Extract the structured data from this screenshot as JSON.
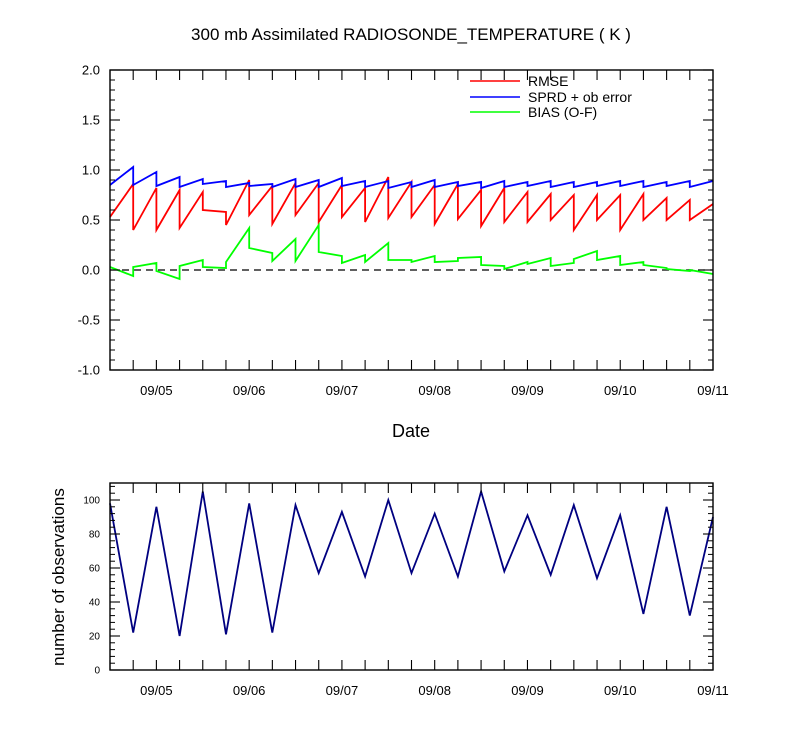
{
  "chart_data": [
    {
      "type": "line",
      "title": "300 mb Assimilated RADIOSONDE_TEMPERATURE ( K )",
      "xlabel": "Date",
      "ylabel": "",
      "ylim": [
        -1.0,
        2.0
      ],
      "xlim": [
        0,
        13
      ],
      "yticks": [
        2.0,
        1.5,
        1.0,
        0.5,
        0.0,
        -0.5,
        -1.0
      ],
      "yticklabels": [
        "2.0",
        "1.5",
        "1.0",
        "0.5",
        "0.0",
        "-0.5",
        "-1.0"
      ],
      "xticks": [
        1,
        3,
        5,
        7,
        9,
        11,
        13
      ],
      "xticklabels": [
        "09/05",
        "09/06",
        "09/07",
        "09/08",
        "09/09",
        "09/10",
        "09/11"
      ],
      "zero_line": true,
      "legend_position": "top-right",
      "series": [
        {
          "name": "RMSE",
          "color": "#ff0000",
          "x": [
            0.0,
            0.5,
            0.5,
            1.0,
            1.0,
            1.5,
            1.5,
            2.0,
            2.0,
            2.5,
            2.5,
            3.0,
            3.0,
            3.5,
            3.5,
            4.0,
            4.0,
            4.5,
            4.5,
            5.0,
            5.0,
            5.5,
            5.5,
            6.0,
            6.0,
            6.5,
            6.5,
            7.0,
            7.0,
            7.5,
            7.5,
            8.0,
            8.0,
            8.5,
            8.5,
            9.0,
            9.0,
            9.5,
            9.5,
            10.0,
            10.0,
            10.5,
            10.5,
            11.0,
            11.0,
            11.5,
            11.5,
            12.0,
            12.0,
            12.5,
            12.5,
            13.0
          ],
          "y": [
            0.53,
            0.86,
            0.4,
            0.82,
            0.4,
            0.8,
            0.42,
            0.78,
            0.6,
            0.58,
            0.45,
            0.9,
            0.55,
            0.84,
            0.46,
            0.87,
            0.55,
            0.87,
            0.48,
            0.85,
            0.53,
            0.82,
            0.48,
            0.93,
            0.52,
            0.88,
            0.53,
            0.85,
            0.46,
            0.86,
            0.51,
            0.8,
            0.44,
            0.82,
            0.48,
            0.78,
            0.48,
            0.76,
            0.5,
            0.75,
            0.4,
            0.75,
            0.5,
            0.75,
            0.4,
            0.76,
            0.5,
            0.72,
            0.5,
            0.7,
            0.5,
            0.66
          ]
        },
        {
          "name": "SPRD + ob error",
          "color": "#0000ff",
          "x": [
            0.0,
            0.5,
            0.5,
            1.0,
            1.0,
            1.5,
            1.5,
            2.0,
            2.0,
            2.5,
            2.5,
            3.0,
            3.0,
            3.5,
            3.5,
            4.0,
            4.0,
            4.5,
            4.5,
            5.0,
            5.0,
            5.5,
            5.5,
            6.0,
            6.0,
            6.5,
            6.5,
            7.0,
            7.0,
            7.5,
            7.5,
            8.0,
            8.0,
            8.5,
            8.5,
            9.0,
            9.0,
            9.5,
            9.5,
            10.0,
            10.0,
            10.5,
            10.5,
            11.0,
            11.0,
            11.5,
            11.5,
            12.0,
            12.0,
            12.5,
            12.5,
            13.0
          ],
          "y": [
            0.85,
            1.03,
            0.85,
            0.98,
            0.84,
            0.93,
            0.83,
            0.91,
            0.86,
            0.89,
            0.83,
            0.87,
            0.84,
            0.86,
            0.83,
            0.91,
            0.83,
            0.9,
            0.83,
            0.92,
            0.84,
            0.89,
            0.83,
            0.89,
            0.82,
            0.88,
            0.83,
            0.9,
            0.83,
            0.88,
            0.84,
            0.88,
            0.82,
            0.89,
            0.83,
            0.88,
            0.84,
            0.89,
            0.83,
            0.88,
            0.83,
            0.88,
            0.84,
            0.89,
            0.84,
            0.89,
            0.83,
            0.88,
            0.84,
            0.89,
            0.83,
            0.89
          ]
        },
        {
          "name": "BIAS (O-F)",
          "color": "#00ff00",
          "x": [
            0.0,
            0.5,
            0.5,
            1.0,
            1.0,
            1.5,
            1.5,
            2.0,
            2.0,
            2.5,
            2.5,
            3.0,
            3.0,
            3.5,
            3.5,
            4.0,
            4.0,
            4.5,
            4.5,
            5.0,
            5.0,
            5.5,
            5.5,
            6.0,
            6.0,
            6.5,
            6.5,
            7.0,
            7.0,
            7.5,
            7.5,
            8.0,
            8.0,
            8.5,
            8.5,
            9.0,
            9.0,
            9.5,
            9.5,
            10.0,
            10.0,
            10.5,
            10.5,
            11.0,
            11.0,
            11.5,
            11.5,
            12.0,
            12.0,
            12.5,
            12.5,
            13.0
          ],
          "y": [
            0.03,
            -0.06,
            0.03,
            0.07,
            -0.01,
            -0.09,
            0.04,
            0.1,
            0.03,
            0.02,
            0.08,
            0.42,
            0.22,
            0.17,
            0.09,
            0.31,
            0.09,
            0.45,
            0.18,
            0.14,
            0.07,
            0.15,
            0.08,
            0.27,
            0.1,
            0.1,
            0.08,
            0.14,
            0.08,
            0.09,
            0.12,
            0.13,
            0.05,
            0.04,
            0.01,
            0.08,
            0.06,
            0.12,
            0.04,
            0.07,
            0.11,
            0.19,
            0.1,
            0.14,
            0.05,
            0.08,
            0.05,
            0.02,
            0.01,
            -0.01,
            0.0,
            -0.04
          ]
        }
      ]
    },
    {
      "type": "line",
      "title": "",
      "xlabel": "",
      "ylabel": "number of observations",
      "ylim": [
        0,
        110
      ],
      "xlim": [
        0,
        13
      ],
      "yticks": [
        0,
        20,
        40,
        60,
        80,
        100
      ],
      "yticklabels": [
        "0",
        "20",
        "40",
        "60",
        "80",
        "100"
      ],
      "xticks": [
        1,
        3,
        5,
        7,
        9,
        11,
        13
      ],
      "xticklabels": [
        "09/05",
        "09/06",
        "09/07",
        "09/08",
        "09/09",
        "09/10",
        "09/11"
      ],
      "series": [
        {
          "name": "observations",
          "color": "#000080",
          "x": [
            0,
            0.5,
            1,
            1.5,
            2,
            2.5,
            3,
            3.5,
            4,
            4.5,
            5,
            5.5,
            6,
            6.5,
            7,
            7.5,
            8,
            8.5,
            9,
            9.5,
            10,
            10.5,
            11,
            11.5,
            12,
            12.5,
            13
          ],
          "y": [
            98,
            22,
            96,
            20,
            105,
            21,
            98,
            22,
            97,
            57,
            93,
            55,
            100,
            57,
            92,
            55,
            105,
            58,
            91,
            56,
            97,
            54,
            91,
            33,
            96,
            32,
            90
          ]
        }
      ]
    }
  ]
}
